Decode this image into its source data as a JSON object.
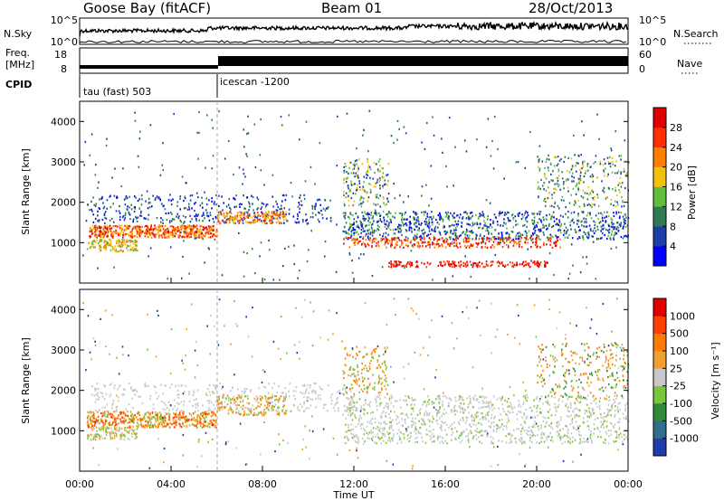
{
  "header": {
    "title": "Goose Bay (fitACF)",
    "beam": "Beam 01",
    "date": "28/Oct/2013"
  },
  "status_panel": {
    "nsky_label": "N.Sky",
    "nsky_ticks": [
      "10^5",
      "10^0"
    ],
    "nsearch_label": "N.Search",
    "nsearch_ticks": [
      "10^5",
      "10^0"
    ],
    "freq_label_1": "Freq.",
    "freq_label_2": "[MHz]",
    "freq_ticks": [
      "18",
      "8"
    ],
    "nave_label": "Nave",
    "nave_ticks": [
      "60",
      "0"
    ],
    "cpid_label": "CPID",
    "cpid_segments": [
      {
        "name": "tau (fast) 503",
        "start_hour": 0
      },
      {
        "name": "icescan -1200",
        "start_hour": 6
      }
    ]
  },
  "chart_data": [
    {
      "type": "heatmap",
      "name": "power",
      "ylabel": "Slant Range [km]",
      "ylim": [
        0,
        4500
      ],
      "yticks": [
        1000,
        2000,
        3000,
        4000
      ],
      "xlim_hours": [
        0,
        24
      ],
      "colorbar_label": "Power [dB]",
      "colorbar_ticks": [
        "4",
        "8",
        "12",
        "16",
        "20",
        "24",
        "28"
      ],
      "colorbar_colors": [
        "#0000ff",
        "#1d3fa8",
        "#2f7a55",
        "#5fbf3c",
        "#f2c20a",
        "#ff7f00",
        "#ff3000",
        "#e00000"
      ]
    },
    {
      "type": "heatmap",
      "name": "velocity",
      "ylabel": "Slant Range [km]",
      "ylim": [
        0,
        4500
      ],
      "yticks": [
        1000,
        2000,
        3000,
        4000
      ],
      "xlim_hours": [
        0,
        24
      ],
      "xlabel": "Time UT",
      "xticks": [
        "00:00",
        "04:00",
        "08:00",
        "12:00",
        "16:00",
        "20:00",
        "00:00"
      ],
      "colorbar_label": "Velocity [m s⁻¹]",
      "colorbar_ticks": [
        "1000",
        "500",
        "100",
        "25",
        "-25",
        "-100",
        "-500",
        "-1000"
      ],
      "colorbar_colors": [
        "#1f3ca8",
        "#2f6e8c",
        "#2f8a3c",
        "#7cc63c",
        "#c8c8c8",
        "#f0a030",
        "#ff7a00",
        "#ff4000",
        "#e00000"
      ]
    }
  ]
}
